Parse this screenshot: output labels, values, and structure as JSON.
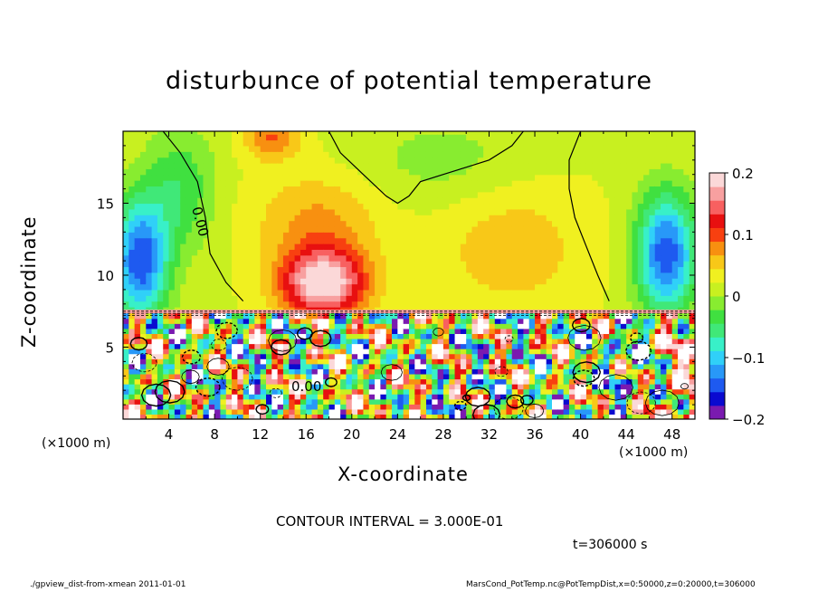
{
  "chart_data": {
    "type": "heatmap",
    "title": "disturbunce of potential temperature",
    "xlabel": "X-coordinate",
    "ylabel": "Z-coordinate",
    "x_unit_label": "(×1000 m)",
    "xlim": [
      0,
      50
    ],
    "ylim": [
      0,
      20
    ],
    "x_ticks": [
      4,
      8,
      12,
      16,
      20,
      24,
      28,
      32,
      36,
      40,
      44,
      48
    ],
    "y_ticks": [
      5,
      10,
      15
    ],
    "colorbar": {
      "range": [
        -0.2,
        0.2
      ],
      "ticks": [
        "0.2",
        "0.1",
        "0",
        "−0.1",
        "−0.2"
      ],
      "tick_values": [
        0.2,
        0.1,
        0,
        -0.1,
        -0.2
      ],
      "colors": [
        "#7a1ab0",
        "#0a0ad0",
        "#1e5af0",
        "#2898f8",
        "#30d0f8",
        "#38f0c8",
        "#40e878",
        "#40e040",
        "#88ec30",
        "#c8f020",
        "#f0f020",
        "#f8c818",
        "#f89010",
        "#f84010",
        "#e81010",
        "#f86060",
        "#f8a0a0",
        "#fbd8d8"
      ]
    },
    "contour_label": "0.00",
    "contour_interval_text": "CONTOUR INTERVAL = 3.000E-01",
    "time_text": "t=306000  s",
    "regions": [
      {
        "x_range": [
          0,
          4
        ],
        "z_range": [
          8,
          20
        ],
        "value": -0.15
      },
      {
        "x_range": [
          4,
          8
        ],
        "z_range": [
          9,
          20
        ],
        "value": -0.05
      },
      {
        "x_range": [
          8,
          13
        ],
        "z_range": [
          8,
          20
        ],
        "value": 0.05
      },
      {
        "x_range": [
          13,
          23
        ],
        "z_range": [
          8,
          14
        ],
        "value": 0.17
      },
      {
        "x_range": [
          12,
          19
        ],
        "z_range": [
          17,
          20
        ],
        "value": 0.1
      },
      {
        "x_range": [
          18,
          40
        ],
        "z_range": [
          14,
          20
        ],
        "value": 0.02
      },
      {
        "x_range": [
          40,
          44
        ],
        "z_range": [
          9,
          20
        ],
        "value": -0.02
      },
      {
        "x_range": [
          44,
          50
        ],
        "z_range": [
          8,
          20
        ],
        "value": -0.15
      },
      {
        "x_range": [
          0,
          50
        ],
        "z_range": [
          7,
          7.5
        ],
        "value": 0.15
      },
      {
        "x_range": [
          0,
          50
        ],
        "z_range": [
          0,
          7
        ],
        "value": "mixed (-0.2 to 0.2)"
      }
    ]
  },
  "footer": {
    "left": "./gpview_dist-from-xmean   2011-01-01",
    "right": "MarsCond_PotTemp.nc@PotTempDist,x=0:50000,z=0:20000,t=306000"
  }
}
